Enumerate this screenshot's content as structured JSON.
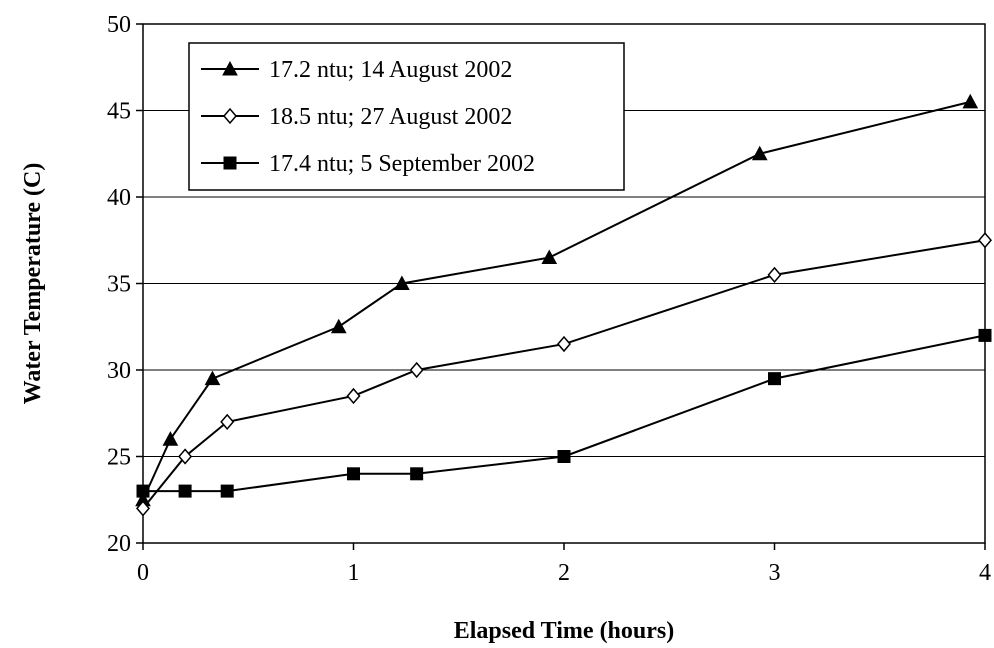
{
  "chart_data": {
    "type": "line",
    "xlabel": "Elapsed Time (hours)",
    "ylabel": "Water Temperature (C)",
    "xlim": [
      0,
      4
    ],
    "ylim": [
      20,
      50
    ],
    "xticks": [
      "0",
      "1",
      "2",
      "3",
      "4"
    ],
    "yticks": [
      "20",
      "25",
      "30",
      "35",
      "40",
      "45",
      "50"
    ],
    "grid": "horizontal",
    "legend_position": "top-left",
    "series": [
      {
        "name": "17.2 ntu; 14 August 2002",
        "marker": "triangle",
        "color": "#000000",
        "x": [
          0,
          0.13,
          0.33,
          0.93,
          1.23,
          1.93,
          2.93,
          3.93
        ],
        "y": [
          22.5,
          26,
          29.5,
          32.5,
          35,
          36.5,
          42.5,
          45.5
        ]
      },
      {
        "name": "18.5 ntu; 27 August 2002",
        "marker": "diamond-open",
        "color": "#000000",
        "x": [
          0,
          0.2,
          0.4,
          1,
          1.3,
          2,
          3,
          4
        ],
        "y": [
          22,
          25,
          27,
          28.5,
          30,
          31.5,
          35.5,
          37.5
        ]
      },
      {
        "name": "17.4 ntu; 5 September 2002",
        "marker": "square",
        "color": "#000000",
        "x": [
          0,
          0.2,
          0.4,
          1,
          1.3,
          2,
          3,
          4
        ],
        "y": [
          23,
          23,
          23,
          24,
          24,
          25,
          29.5,
          32
        ]
      }
    ]
  }
}
